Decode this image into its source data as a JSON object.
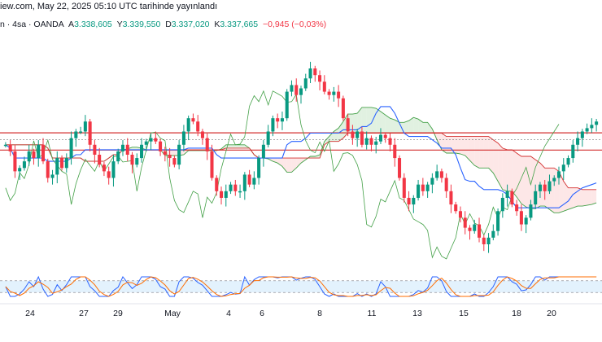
{
  "header": {
    "caption": "iew.com, May 22, 2025 05:10 UTC tarihinde yayınlandı"
  },
  "legend": {
    "prefix": "n · 4sa · OANDA",
    "open_label": "A",
    "open": "3.338,605",
    "high_label": "Y",
    "high": "3.339,550",
    "low_label": "D",
    "low": "3.337,020",
    "close_label": "K",
    "close": "3.337,665",
    "change": "−0,945 (−0,03%)"
  },
  "colors": {
    "up": "#089981",
    "down": "#f23645",
    "kijun": "#2962ff",
    "tenkan_red": "#d32f2f",
    "span_green": "#43a047",
    "cloud_green": "#c8e6c9",
    "cloud_red": "#fbd4d4",
    "stoch_k": "#2962ff",
    "stoch_d": "#ff6d00",
    "stoch_band": "#e3f2fd"
  },
  "chart_data": {
    "type": "candlestick",
    "x_ticks": [
      "24",
      "27",
      "29",
      "May",
      "4",
      "6",
      "8",
      "11",
      "13",
      "15",
      "18",
      "20"
    ],
    "close_series": [
      3300,
      3290,
      3260,
      3265,
      3275,
      3290,
      3280,
      3300,
      3275,
      3250,
      3255,
      3280,
      3265,
      3280,
      3310,
      3320,
      3320,
      3335,
      3300,
      3285,
      3270,
      3260,
      3250,
      3275,
      3290,
      3300,
      3285,
      3270,
      3280,
      3300,
      3305,
      3310,
      3305,
      3290,
      3285,
      3280,
      3270,
      3300,
      3320,
      3340,
      3335,
      3320,
      3310,
      3290,
      3250,
      3230,
      3220,
      3230,
      3240,
      3230,
      3230,
      3255,
      3240,
      3250,
      3280,
      3300,
      3320,
      3340,
      3335,
      3340,
      3380,
      3390,
      3375,
      3385,
      3400,
      3415,
      3405,
      3395,
      3380,
      3375,
      3380,
      3370,
      3340,
      3320,
      3310,
      3320,
      3300,
      3310,
      3300,
      3305,
      3315,
      3310,
      3300,
      3280,
      3250,
      3220,
      3210,
      3220,
      3240,
      3230,
      3240,
      3250,
      3260,
      3250,
      3230,
      3210,
      3200,
      3190,
      3175,
      3170,
      3180,
      3160,
      3150,
      3160,
      3170,
      3200,
      3220,
      3230,
      3210,
      3200,
      3180,
      3190,
      3210,
      3230,
      3240,
      3230,
      3245,
      3250,
      3260,
      3270,
      3280,
      3300,
      3310,
      3320,
      3325,
      3330,
      3335
    ],
    "horizontal_lines": [
      3318,
      3308,
      3292
    ],
    "stochastic": {
      "upper": 80,
      "lower": 20
    }
  }
}
